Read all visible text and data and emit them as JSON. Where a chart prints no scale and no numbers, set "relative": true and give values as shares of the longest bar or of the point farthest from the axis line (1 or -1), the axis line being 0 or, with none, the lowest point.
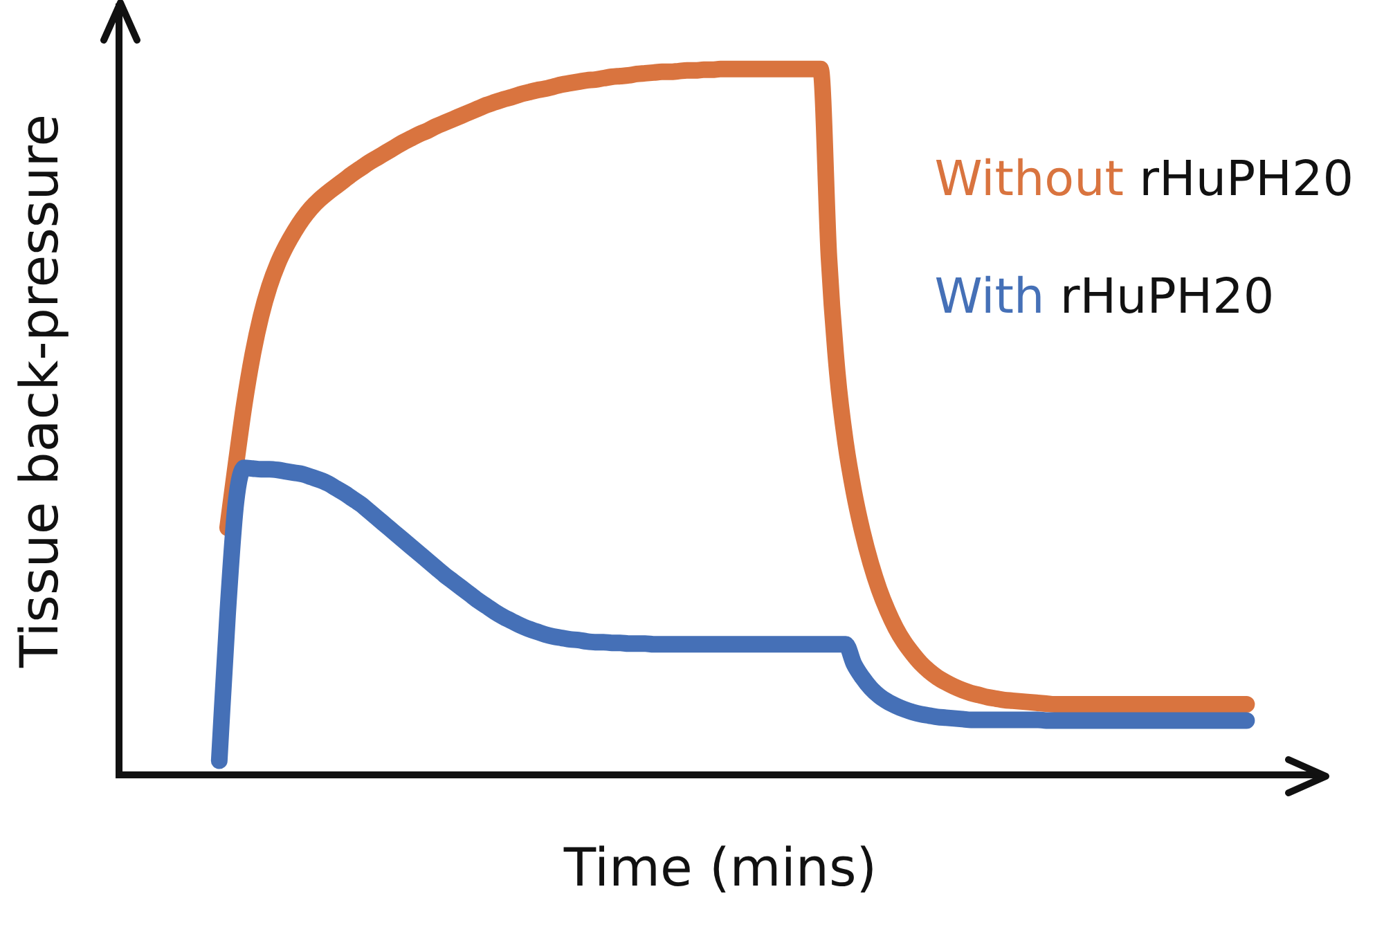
{
  "chart_data": {
    "type": "line",
    "xlabel": "Time (mins)",
    "ylabel": "Tissue back-pressure",
    "relative": true,
    "legend": "top right",
    "categories": [
      null,
      null,
      null,
      null,
      null,
      null,
      null,
      null,
      null,
      null,
      null,
      null,
      null,
      null,
      null,
      null,
      null,
      null,
      null,
      null,
      null,
      null,
      null,
      null,
      null,
      null,
      null,
      null,
      null,
      null,
      null,
      null,
      null,
      null,
      null,
      null,
      null,
      null,
      null,
      null,
      null,
      null,
      null,
      null,
      null,
      null,
      null,
      null,
      null,
      null,
      null,
      null,
      null,
      null,
      null,
      null,
      null,
      null,
      null,
      null,
      null,
      null,
      null,
      null,
      null,
      null,
      null,
      null,
      null,
      null,
      null,
      null,
      null,
      null,
      null,
      null,
      null,
      null,
      null,
      null,
      null,
      null,
      null,
      null,
      null,
      null,
      null,
      null,
      null,
      null,
      null,
      null,
      null,
      null,
      null,
      null,
      null,
      null,
      null,
      null,
      null,
      null,
      null,
      null,
      null,
      null,
      null,
      null,
      null,
      null,
      null,
      null,
      null,
      null,
      null,
      null,
      null,
      null,
      null,
      null,
      null,
      null,
      null,
      null,
      null,
      null,
      null,
      null,
      null,
      null,
      null,
      null,
      null,
      null,
      null,
      null,
      null,
      null,
      null,
      null,
      null,
      null,
      null,
      null,
      null
    ],
    "series": [
      {
        "name": "Without rHuPH20",
        "color": "#d9743f",
        "values": [
          null,
          null,
          null,
          null,
          null,
          null,
          null,
          null,
          null,
          null,
          null,
          null,
          null,
          0.35,
          0.44,
          0.525,
          0.595,
          0.65,
          0.692,
          0.724,
          0.749,
          0.77,
          0.788,
          0.803,
          0.815,
          0.825,
          0.834,
          0.843,
          0.852,
          0.86,
          0.868,
          0.875,
          0.882,
          0.889,
          0.896,
          0.902,
          0.908,
          0.913,
          0.919,
          0.924,
          0.929,
          0.934,
          0.939,
          0.944,
          0.949,
          0.953,
          0.957,
          0.96,
          0.964,
          0.967,
          0.97,
          0.972,
          0.975,
          0.978,
          0.98,
          0.982,
          0.984,
          0.985,
          0.987,
          0.989,
          0.99,
          0.991,
          0.993,
          0.994,
          0.995,
          0.996,
          0.996,
          0.997,
          0.998,
          0.998,
          0.999,
          0.999,
          1,
          1,
          1,
          1,
          1,
          1,
          1,
          1,
          1,
          1,
          1,
          1,
          1,
          0.733,
          0.57,
          0.47,
          0.4,
          0.345,
          0.3,
          0.263,
          0.233,
          0.208,
          0.188,
          0.172,
          0.158,
          0.147,
          0.138,
          0.131,
          0.125,
          0.12,
          0.116,
          0.113,
          0.11,
          0.108,
          0.106,
          0.105,
          0.104,
          0.103,
          0.102,
          0.101,
          0.1,
          0.1,
          0.1,
          0.1,
          0.1,
          0.1,
          0.1,
          0.1,
          0.1,
          0.1,
          0.1,
          0.1,
          0.1,
          0.1,
          0.1,
          0.1,
          0.1,
          0.1,
          0.1,
          0.1,
          0.1,
          0.1,
          0.1,
          0.1,
          null,
          null,
          null,
          null,
          null,
          null,
          null,
          null,
          null
        ]
      },
      {
        "name": "With rHuPH20",
        "color": "#4570b7",
        "values": [
          null,
          null,
          null,
          null,
          null,
          null,
          null,
          null,
          null,
          null,
          null,
          null,
          0.02,
          0.227,
          0.386,
          0.435,
          0.434,
          0.433,
          0.433,
          0.432,
          0.43,
          0.428,
          0.426,
          0.422,
          0.418,
          0.413,
          0.406,
          0.399,
          0.391,
          0.383,
          0.373,
          0.363,
          0.353,
          0.343,
          0.333,
          0.323,
          0.313,
          0.303,
          0.293,
          0.283,
          0.274,
          0.265,
          0.256,
          0.247,
          0.239,
          0.231,
          0.224,
          0.218,
          0.212,
          0.207,
          0.203,
          0.199,
          0.196,
          0.194,
          0.192,
          0.191,
          0.189,
          0.188,
          0.188,
          0.187,
          0.187,
          0.186,
          0.186,
          0.186,
          0.185,
          0.185,
          0.185,
          0.185,
          0.185,
          0.185,
          0.185,
          0.185,
          0.185,
          0.185,
          0.185,
          0.185,
          0.185,
          0.185,
          0.185,
          0.185,
          0.185,
          0.185,
          0.185,
          0.185,
          0.185,
          0.185,
          0.185,
          0.185,
          0.157,
          0.138,
          0.123,
          0.112,
          0.104,
          0.098,
          0.093,
          0.089,
          0.086,
          0.084,
          0.082,
          0.081,
          0.08,
          0.079,
          0.078,
          0.078,
          0.078,
          0.078,
          0.078,
          0.078,
          0.078,
          0.078,
          0.078,
          0.077,
          0.077,
          0.077,
          0.077,
          0.077,
          0.077,
          0.077,
          0.077,
          0.077,
          0.077,
          0.077,
          0.077,
          0.077,
          0.077,
          0.077,
          0.077,
          0.077,
          0.077,
          0.077,
          0.077,
          0.077,
          0.077,
          0.077,
          0.077,
          0.077,
          null,
          null,
          null,
          null,
          null,
          null,
          null,
          null,
          null
        ]
      }
    ]
  }
}
